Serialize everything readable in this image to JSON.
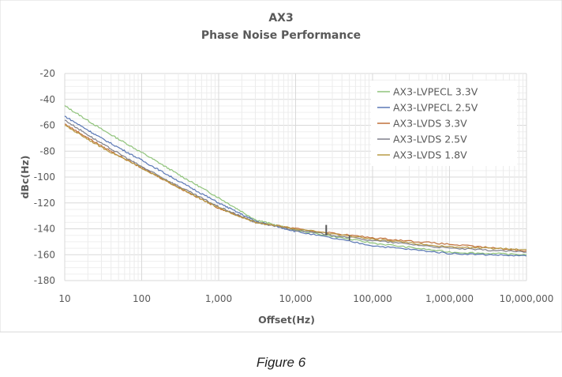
{
  "chart_data": {
    "type": "line",
    "title": "AX3",
    "subtitle": "Phase Noise Performance",
    "xlabel": "Offset(Hz)",
    "ylabel": "dBc(Hz)",
    "xscale": "log",
    "xlim": [
      10,
      10000000
    ],
    "ylim": [
      -180,
      -20
    ],
    "x_ticks": [
      "10",
      "100",
      "1,000",
      "10,000",
      "100,000",
      "1,000,000",
      "10,000,000"
    ],
    "y_ticks": [
      "-20",
      "-40",
      "-60",
      "-80",
      "-100",
      "-120",
      "-140",
      "-160",
      "-180"
    ],
    "grid": true,
    "legend_position": "top-right",
    "x": [
      10,
      30,
      100,
      300,
      1000,
      3000,
      10000,
      100000,
      1000000,
      10000000
    ],
    "series": [
      {
        "name": "AX3-LVPECL 3.3V",
        "color": "#8fc37a",
        "values": [
          -45,
          -63,
          -81,
          -98,
          -116,
          -133,
          -141,
          -151,
          -158,
          -160
        ]
      },
      {
        "name": "AX3-LVPECL 2.5V",
        "color": "#5b78b5",
        "values": [
          -53,
          -70,
          -87,
          -103,
          -120,
          -134,
          -142,
          -153,
          -159,
          -161
        ]
      },
      {
        "name": "AX3-LVDS 3.3V",
        "color": "#c0703a",
        "values": [
          -59,
          -76,
          -93,
          -108,
          -124,
          -135,
          -140,
          -147,
          -152,
          -157
        ]
      },
      {
        "name": "AX3-LVDS 2.5V",
        "color": "#7f7f8a",
        "values": [
          -56,
          -74,
          -92,
          -107,
          -123,
          -135,
          -141,
          -149,
          -155,
          -158
        ]
      },
      {
        "name": "AX3-LVDS 1.8V",
        "color": "#b89a45",
        "values": [
          -60,
          -77,
          -93,
          -108,
          -124,
          -135,
          -140,
          -148,
          -154,
          -156
        ]
      }
    ]
  },
  "caption": "Figure 6"
}
